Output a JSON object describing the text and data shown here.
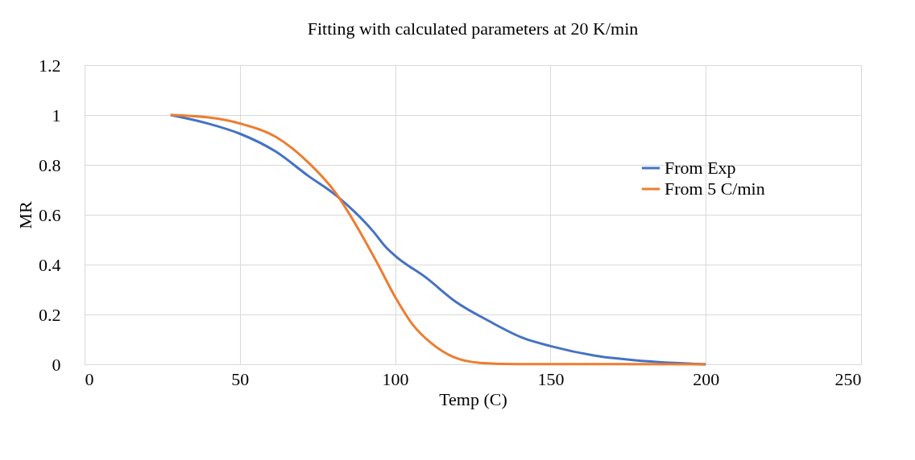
{
  "chart_data": {
    "type": "line",
    "title": "Fitting with calculated parameters at 20 K/min",
    "xlabel": "Temp (C)",
    "ylabel": "MR",
    "xlim": [
      0,
      250
    ],
    "xticks": [
      0,
      50,
      100,
      150,
      200,
      250
    ],
    "ylim": [
      0,
      1.2
    ],
    "yticks": [
      0,
      0.2,
      0.4,
      0.6,
      0.8,
      1,
      1.2
    ],
    "grid": true,
    "legend": "right",
    "marker": "none",
    "line_style": "solid",
    "series": [
      {
        "name": "From Exp",
        "color": "#4472c4",
        "x": [
          27.7,
          40,
          50,
          61.6,
          72,
          80.7,
          92.8,
          97,
          100,
          110,
          119.6,
          130,
          141.3,
          150,
          164.3,
          177.2,
          200
        ],
        "values": [
          1.0,
          0.965,
          0.925,
          0.853,
          0.756,
          0.68,
          0.535,
          0.47,
          0.435,
          0.347,
          0.25,
          0.175,
          0.105,
          0.073,
          0.035,
          0.016,
          0.0
        ]
      },
      {
        "name": "From 5 C/min",
        "color": "#ed7d31",
        "x": [
          27.7,
          40,
          50,
          61.6,
          72,
          80.7,
          88.5,
          94.5,
          100,
          105.6,
          111.7,
          118.6,
          127.3,
          140,
          200
        ],
        "values": [
          1.0,
          0.99,
          0.966,
          0.912,
          0.81,
          0.69,
          0.535,
          0.4,
          0.27,
          0.16,
          0.084,
          0.03,
          0.006,
          0.001,
          0.0
        ]
      }
    ]
  }
}
